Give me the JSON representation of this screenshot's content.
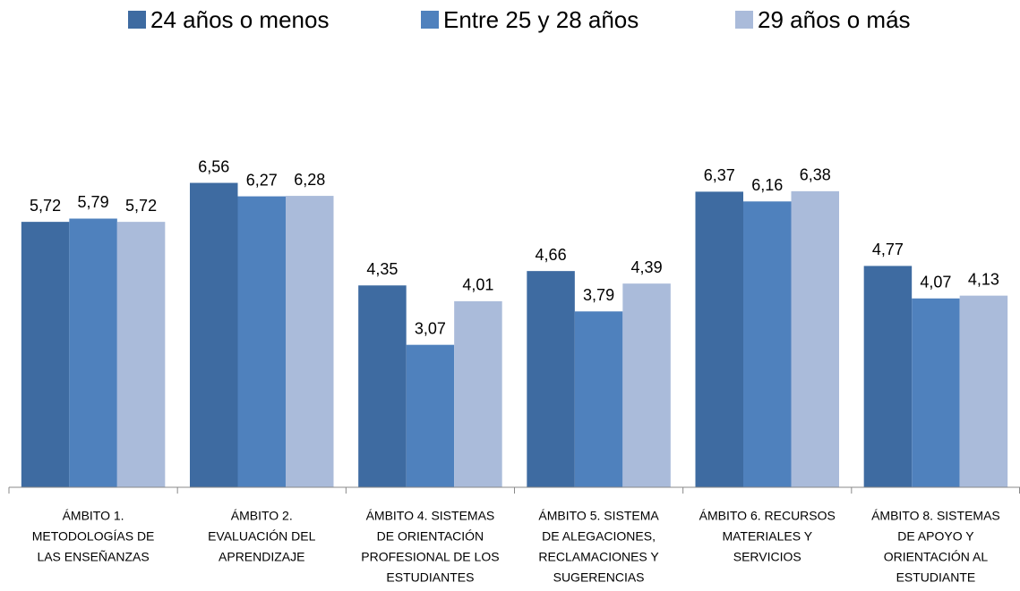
{
  "chart_data": {
    "type": "bar",
    "categories": [
      [
        "ÁMBITO 1.",
        "METODOLOGÍAS DE",
        "LAS ENSEÑANZAS"
      ],
      [
        "ÁMBITO 2.",
        "EVALUACIÓN DEL",
        "APRENDIZAJE"
      ],
      [
        "ÁMBITO 4. SISTEMAS",
        "DE ORIENTACIÓN",
        "PROFESIONAL DE LOS",
        "ESTUDIANTES"
      ],
      [
        "ÁMBITO 5. SISTEMA",
        "DE ALEGACIONES,",
        "RECLAMACIONES Y",
        "SUGERENCIAS"
      ],
      [
        "ÁMBITO 6. RECURSOS",
        "MATERIALES Y",
        "SERVICIOS"
      ],
      [
        "ÁMBITO 8. SISTEMAS",
        "DE APOYO Y",
        "ORIENTACIÓN AL",
        "ESTUDIANTE"
      ]
    ],
    "series": [
      {
        "name": "24 años o menos",
        "color": "#3e6ba1",
        "values": [
          5.72,
          6.56,
          4.35,
          4.66,
          6.37,
          4.77
        ],
        "value_labels": [
          "5,72",
          "6,56",
          "4,35",
          "4,66",
          "6,37",
          "4,77"
        ]
      },
      {
        "name": "Entre 25 y 28 años",
        "color": "#4f81bd",
        "values": [
          5.79,
          6.27,
          3.07,
          3.79,
          6.16,
          4.07
        ],
        "value_labels": [
          "5,79",
          "6,27",
          "3,07",
          "3,79",
          "6,16",
          "4,07"
        ]
      },
      {
        "name": "29 años o más",
        "color": "#aabbda",
        "values": [
          5.72,
          6.28,
          4.01,
          4.39,
          6.38,
          4.13
        ],
        "value_labels": [
          "5,72",
          "6,28",
          "4,01",
          "4,39",
          "6,38",
          "4,13"
        ]
      }
    ],
    "ylim": [
      0,
      7
    ],
    "legend": "top"
  }
}
